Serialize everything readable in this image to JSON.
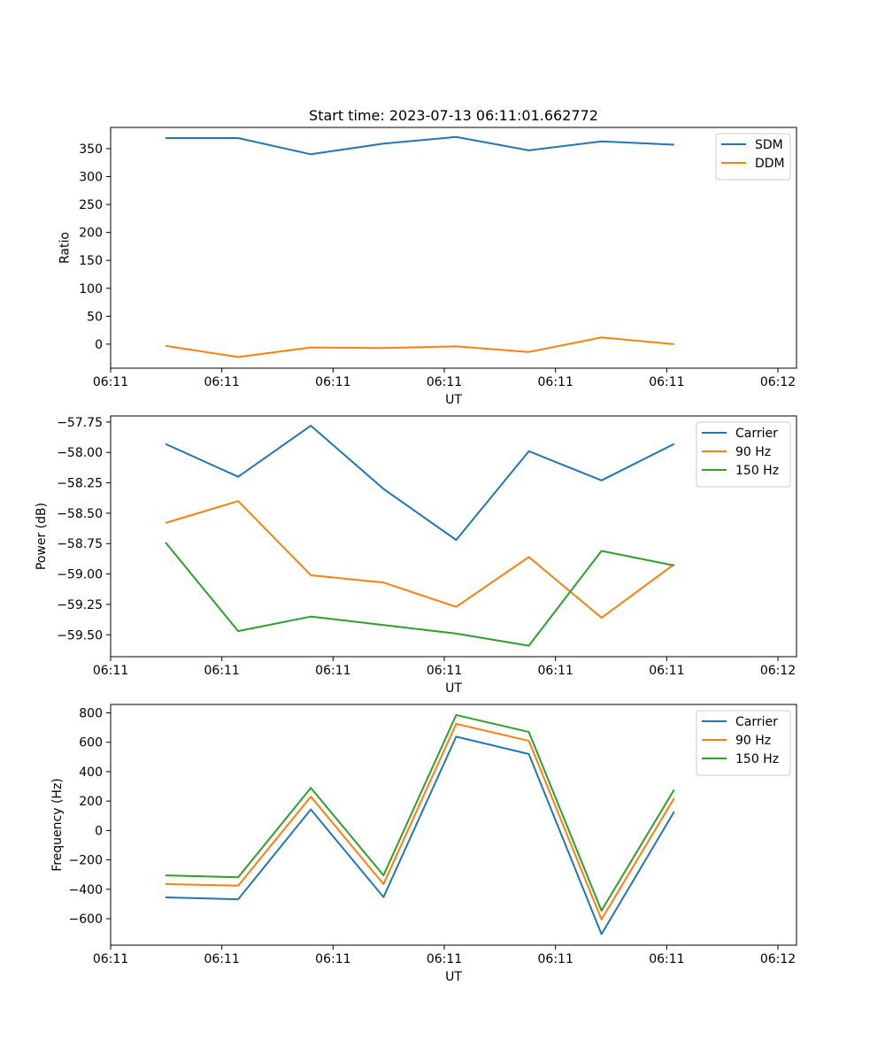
{
  "chart_data": [
    {
      "type": "line",
      "title": "Start time: 2023-07-13 06:11:01.662772",
      "xlabel": "UT",
      "ylabel": "Ratio",
      "xlim": [
        0,
        9.25
      ],
      "ylim": [
        -43,
        388
      ],
      "x_ticks": [
        0,
        1.5,
        3,
        4.5,
        6,
        7.5,
        9
      ],
      "x_tick_labels": [
        "06:11",
        "06:11",
        "06:11",
        "06:11",
        "06:11",
        "06:11",
        "06:12"
      ],
      "y_ticks": [
        0,
        50,
        100,
        150,
        200,
        250,
        300,
        350
      ],
      "y_tick_labels": [
        "0",
        "50",
        "100",
        "150",
        "200",
        "250",
        "300",
        "350"
      ],
      "x": [
        0.74,
        1.72,
        2.7,
        3.68,
        4.66,
        5.64,
        6.62,
        7.6
      ],
      "series": [
        {
          "name": "SDM",
          "color": "#1f77b4",
          "values": [
            369,
            369,
            340,
            359,
            371,
            347,
            363,
            357
          ]
        },
        {
          "name": "DDM",
          "color": "#ff7f0e",
          "values": [
            -3,
            -23,
            -6,
            -7,
            -4,
            -14,
            12,
            0
          ]
        }
      ],
      "legend": "top-right"
    },
    {
      "type": "line",
      "title": "",
      "xlabel": "UT",
      "ylabel": "Power (dB)",
      "xlim": [
        0,
        9.25
      ],
      "ylim": [
        -59.68,
        -57.7
      ],
      "x_ticks": [
        0,
        1.5,
        3,
        4.5,
        6,
        7.5,
        9
      ],
      "x_tick_labels": [
        "06:11",
        "06:11",
        "06:11",
        "06:11",
        "06:11",
        "06:11",
        "06:12"
      ],
      "y_ticks": [
        -59.5,
        -59.25,
        -59.0,
        -58.75,
        -58.5,
        -58.25,
        -58.0,
        -57.75
      ],
      "y_tick_labels": [
        "−59.50",
        "−59.25",
        "−59.00",
        "−58.75",
        "−58.50",
        "−58.25",
        "−58.00",
        "−57.75"
      ],
      "x": [
        0.74,
        1.72,
        2.7,
        3.68,
        4.66,
        5.64,
        6.62,
        7.6
      ],
      "series": [
        {
          "name": "Carrier",
          "color": "#1f77b4",
          "values": [
            -57.93,
            -58.2,
            -57.78,
            -58.3,
            -58.72,
            -57.99,
            -58.23,
            -57.93
          ]
        },
        {
          "name": "90 Hz",
          "color": "#ff7f0e",
          "values": [
            -58.58,
            -58.4,
            -59.01,
            -59.07,
            -59.27,
            -58.86,
            -59.36,
            -58.92
          ]
        },
        {
          "name": "150 Hz",
          "color": "#2ca02c",
          "values": [
            -58.74,
            -59.47,
            -59.35,
            -59.42,
            -59.49,
            -59.59,
            -58.81,
            -58.93
          ]
        }
      ],
      "legend": "top-right"
    },
    {
      "type": "line",
      "title": "",
      "xlabel": "UT",
      "ylabel": "Frequency (Hz)",
      "xlim": [
        0,
        9.25
      ],
      "ylim": [
        -780,
        857
      ],
      "x_ticks": [
        0,
        1.5,
        3,
        4.5,
        6,
        7.5,
        9
      ],
      "x_tick_labels": [
        "06:11",
        "06:11",
        "06:11",
        "06:11",
        "06:11",
        "06:11",
        "06:12"
      ],
      "y_ticks": [
        -600,
        -400,
        -200,
        0,
        200,
        400,
        600,
        800
      ],
      "y_tick_labels": [
        "−600",
        "−400",
        "−200",
        "0",
        "200",
        "400",
        "600",
        "800"
      ],
      "x": [
        0.74,
        1.72,
        2.7,
        3.68,
        4.66,
        5.64,
        6.62,
        7.6
      ],
      "series": [
        {
          "name": "Carrier",
          "color": "#1f77b4",
          "values": [
            -455,
            -468,
            143,
            -453,
            638,
            520,
            -705,
            128
          ]
        },
        {
          "name": "90 Hz",
          "color": "#ff7f0e",
          "values": [
            -365,
            -375,
            230,
            -365,
            725,
            610,
            -605,
            220
          ]
        },
        {
          "name": "150 Hz",
          "color": "#2ca02c",
          "values": [
            -305,
            -318,
            290,
            -305,
            785,
            670,
            -545,
            278
          ]
        }
      ],
      "legend": "top-right"
    }
  ]
}
